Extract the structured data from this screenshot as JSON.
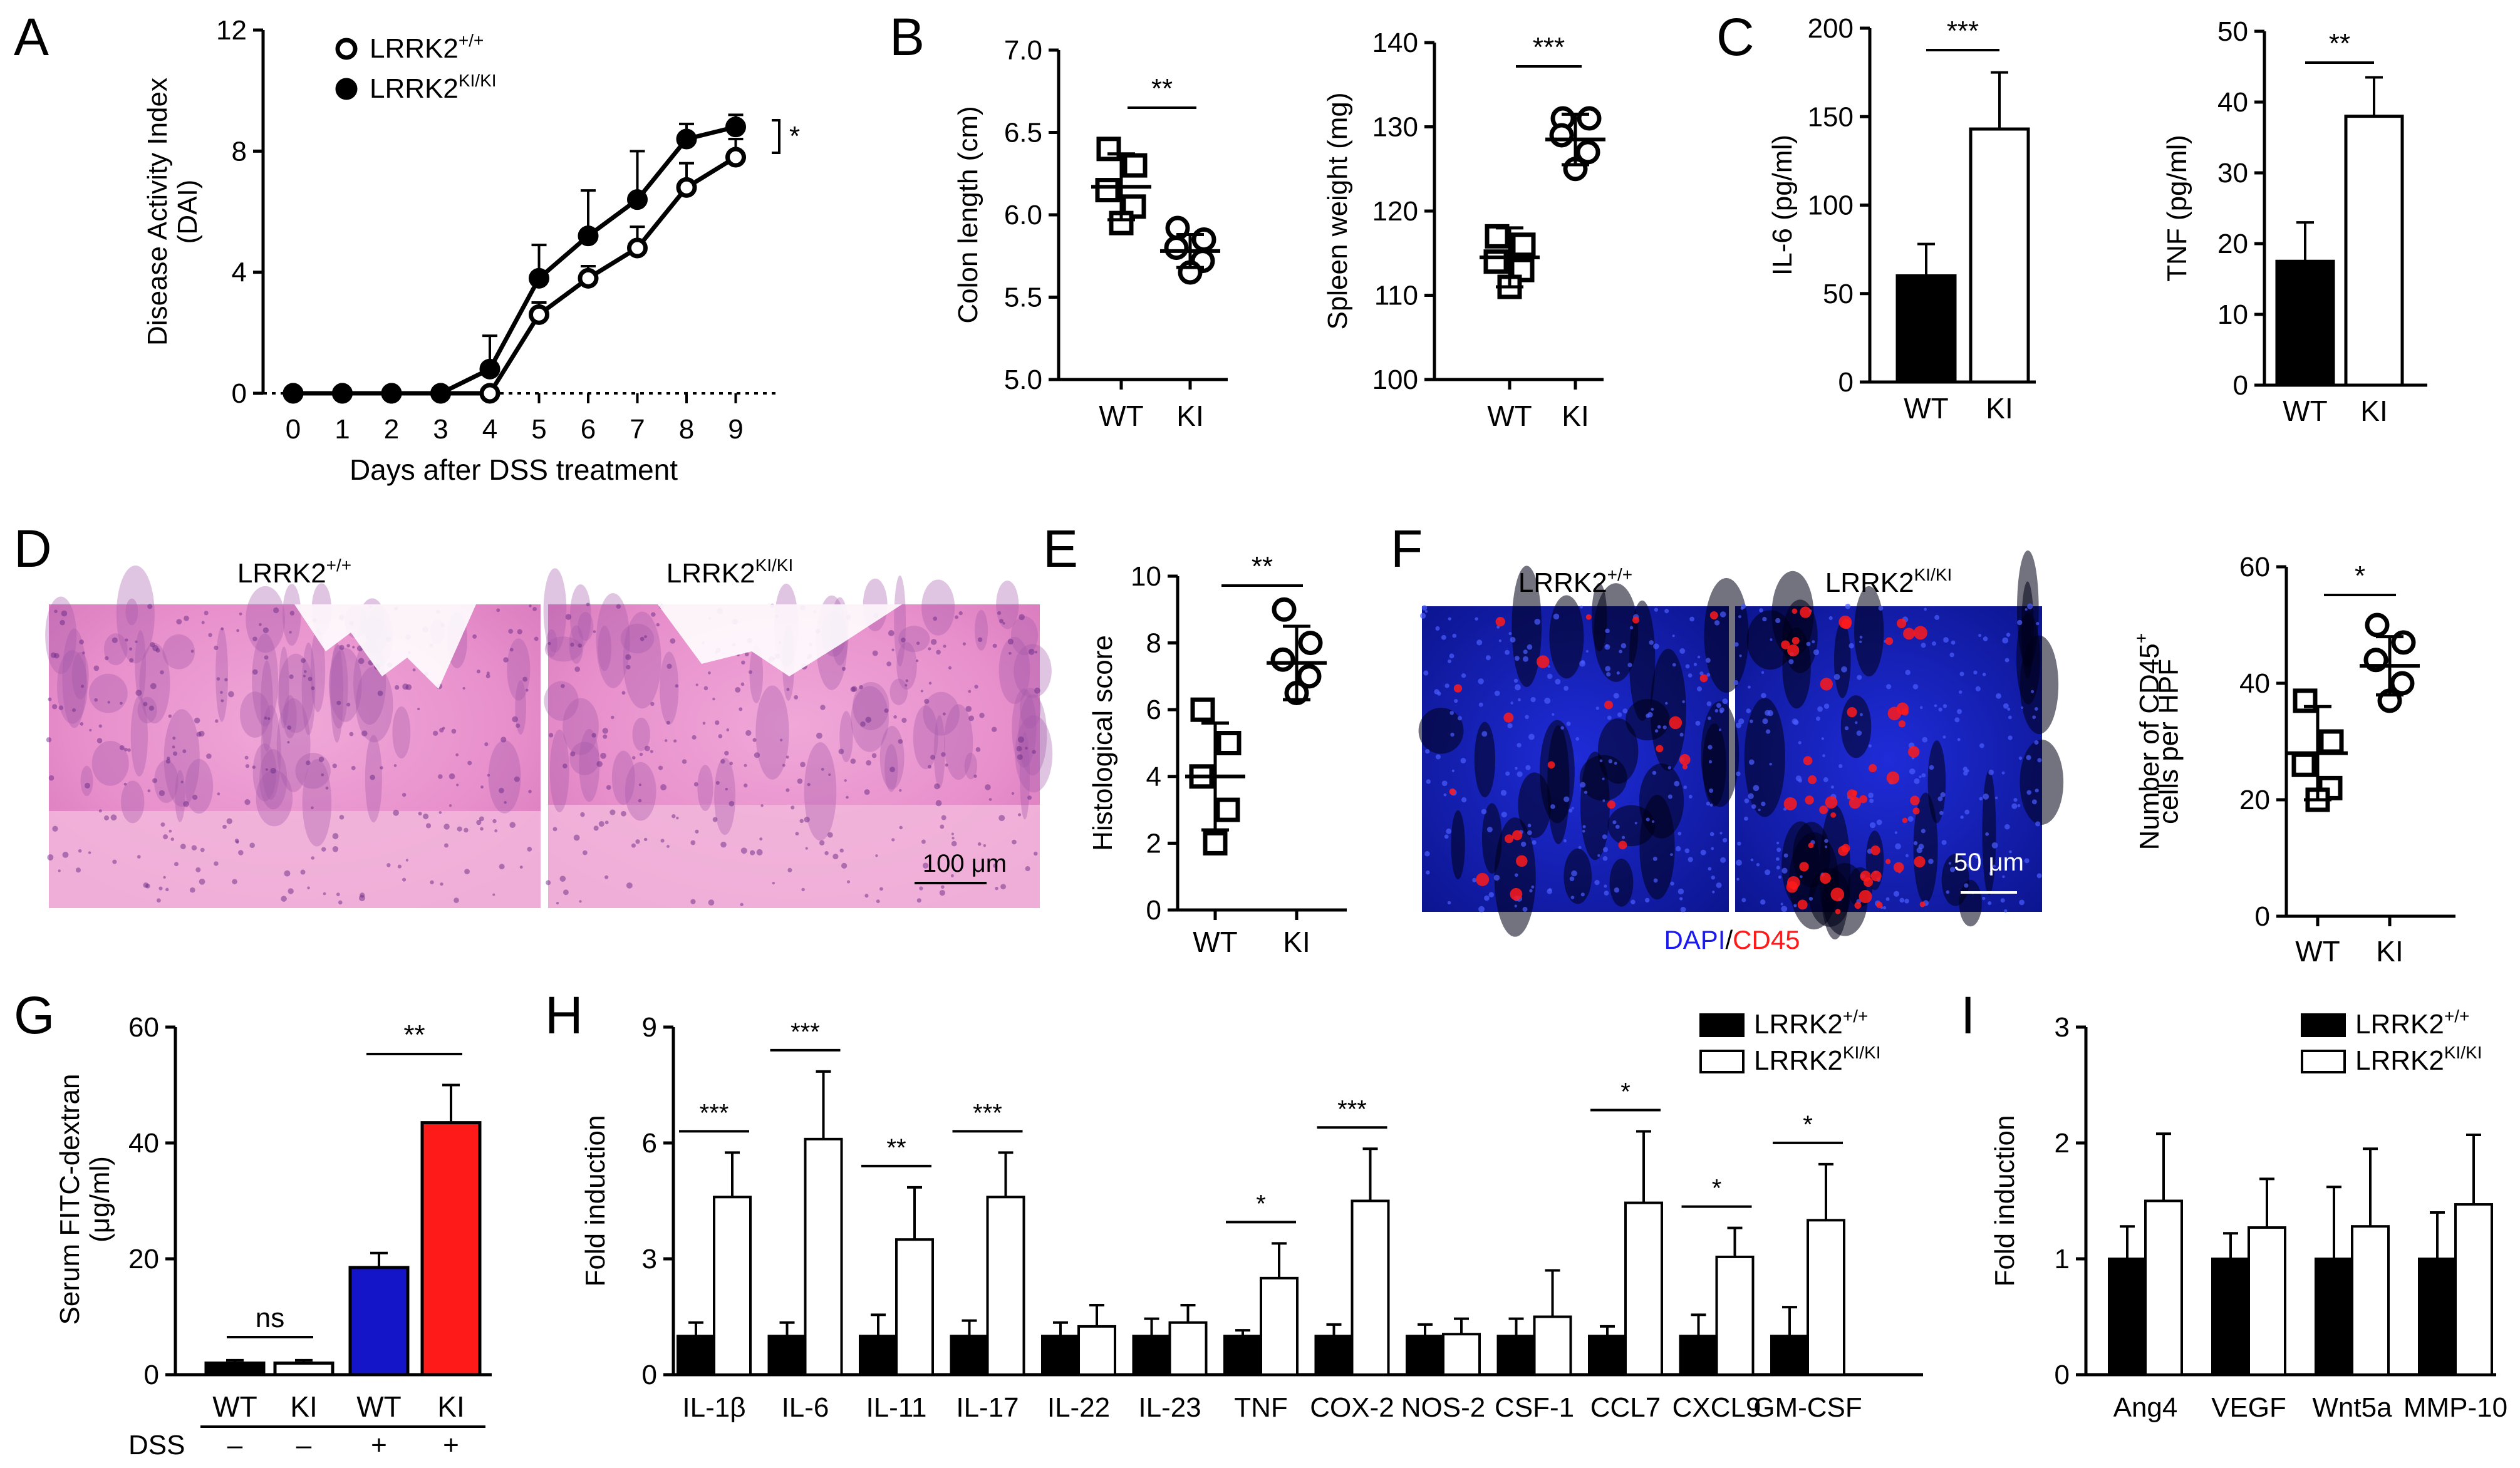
{
  "figure": {
    "panel_letters": [
      "A",
      "B",
      "C",
      "D",
      "E",
      "F",
      "G",
      "H",
      "I"
    ]
  },
  "chart_data": [
    {
      "id": "A",
      "type": "line",
      "title": "",
      "xlabel": "Days after DSS treatment",
      "ylabel": "Disease Activity Index (DAI)",
      "ylabel_lines": [
        "Disease Activity Index",
        "(DAI)"
      ],
      "x": [
        0,
        1,
        2,
        3,
        4,
        5,
        6,
        7,
        8,
        9
      ],
      "xticks": [
        "0",
        "1",
        "2",
        "3",
        "4",
        "5",
        "6",
        "7",
        "8",
        "9"
      ],
      "ylim": [
        0,
        12
      ],
      "yticks": [
        "0",
        "4",
        "8",
        "12"
      ],
      "series": [
        {
          "name": "LRRK2",
          "sup": "+/+",
          "marker": "open-circle",
          "values": [
            0,
            0,
            0,
            0,
            0,
            2.6,
            3.8,
            4.8,
            6.8,
            7.8
          ],
          "errors": [
            0,
            0,
            0,
            0,
            0,
            0.4,
            0.4,
            0.7,
            0.8,
            0.6
          ]
        },
        {
          "name": "LRRK2",
          "sup": "KI/KI",
          "marker": "filled-circle",
          "values": [
            0,
            0,
            0,
            0,
            0.8,
            3.8,
            5.2,
            6.4,
            8.4,
            8.8
          ],
          "errors": [
            0,
            0,
            0,
            0,
            1.1,
            1.1,
            1.5,
            1.6,
            0.5,
            0.4
          ]
        }
      ],
      "annotation": "*"
    },
    {
      "id": "B1",
      "type": "scatter",
      "ylabel": "Colon length (cm)",
      "categories": [
        "WT",
        "KI"
      ],
      "ylim": [
        5.0,
        7.0
      ],
      "yticks": [
        "5.0",
        "5.5",
        "6.0",
        "6.5",
        "7.0"
      ],
      "groups": [
        {
          "marker": "open-square",
          "points": [
            6.4,
            6.3,
            6.15,
            6.05,
            5.95
          ],
          "mean": 6.17,
          "sd": 0.2
        },
        {
          "marker": "open-circle",
          "points": [
            5.92,
            5.85,
            5.8,
            5.72,
            5.65
          ],
          "mean": 5.78,
          "sd": 0.1
        }
      ],
      "significance": "**"
    },
    {
      "id": "B2",
      "type": "scatter",
      "ylabel": "Spleen weight (mg)",
      "categories": [
        "WT",
        "KI"
      ],
      "ylim": [
        100,
        140
      ],
      "yticks": [
        "100",
        "110",
        "120",
        "130",
        "140"
      ],
      "groups": [
        {
          "marker": "open-square",
          "points": [
            117,
            116,
            114,
            113,
            111
          ],
          "mean": 114.5,
          "sd": 3.5
        },
        {
          "marker": "open-circle",
          "points": [
            131,
            131,
            129,
            127,
            125
          ],
          "mean": 128.5,
          "sd": 3
        }
      ],
      "significance": "***"
    },
    {
      "id": "C1",
      "type": "bar",
      "ylabel": "IL-6 (pg/ml)",
      "categories": [
        "WT",
        "KI"
      ],
      "values": [
        60,
        143
      ],
      "errors": [
        18,
        32
      ],
      "fills": [
        "filled",
        "open"
      ],
      "ylim": [
        0,
        200
      ],
      "yticks": [
        "0",
        "50",
        "100",
        "150",
        "200"
      ],
      "significance": "***"
    },
    {
      "id": "C2",
      "type": "bar",
      "ylabel": "TNF (pg/ml)",
      "categories": [
        "WT",
        "KI"
      ],
      "values": [
        17.5,
        38
      ],
      "errors": [
        5.5,
        5.5
      ],
      "fills": [
        "filled",
        "open"
      ],
      "ylim": [
        0,
        50
      ],
      "yticks": [
        "0",
        "10",
        "20",
        "30",
        "40",
        "50"
      ],
      "significance": "**"
    },
    {
      "id": "E",
      "type": "scatter",
      "ylabel": "Histological score",
      "categories": [
        "WT",
        "KI"
      ],
      "ylim": [
        0,
        10
      ],
      "yticks": [
        "0",
        "2",
        "4",
        "6",
        "8",
        "10"
      ],
      "groups": [
        {
          "marker": "open-square",
          "points": [
            6,
            5,
            4,
            3,
            2
          ],
          "mean": 4,
          "sd": 1.6
        },
        {
          "marker": "open-circle",
          "points": [
            9,
            8,
            7.5,
            7,
            6.5
          ],
          "mean": 7.4,
          "sd": 1.1
        }
      ],
      "significance": "**"
    },
    {
      "id": "F",
      "type": "scatter",
      "ylabel": "Number of CD45+ cells per HPF",
      "ylabel_lines": [
        "Number of CD45",
        "cells per HPF"
      ],
      "ylabel_sup": "+",
      "categories": [
        "WT",
        "KI"
      ],
      "ylim": [
        0,
        60
      ],
      "yticks": [
        "0",
        "20",
        "40",
        "60"
      ],
      "groups": [
        {
          "marker": "open-square",
          "points": [
            37,
            30,
            26,
            22,
            20
          ],
          "mean": 28,
          "sd": 8
        },
        {
          "marker": "open-circle",
          "points": [
            50,
            47,
            44,
            40,
            37
          ],
          "mean": 43,
          "sd": 5
        }
      ],
      "significance": "*"
    },
    {
      "id": "G",
      "type": "bar",
      "ylabel": "Serum FITC-dextran (μg/ml)",
      "ylabel_lines": [
        "Serum FITC-dextran",
        "(μg/ml)"
      ],
      "categories": [
        "WT",
        "KI",
        "WT",
        "KI"
      ],
      "dss_label": "DSS",
      "dss": [
        "–",
        "–",
        "+",
        "+"
      ],
      "values": [
        2,
        2,
        18.5,
        43.5
      ],
      "errors": [
        0.5,
        0.5,
        2.5,
        6.5
      ],
      "colors": [
        "#000000",
        "#ffffff",
        "#1414c8",
        "#ff1a1a"
      ],
      "ylim": [
        0,
        60
      ],
      "yticks": [
        "0",
        "20",
        "40",
        "60"
      ],
      "significance": [
        {
          "pair": [
            0,
            1
          ],
          "label": "ns"
        },
        {
          "pair": [
            2,
            3
          ],
          "label": "**"
        }
      ]
    },
    {
      "id": "H",
      "type": "bar",
      "ylabel": "Fold induction",
      "categories": [
        "IL-1β",
        "IL-6",
        "IL-11",
        "IL-17",
        "IL-22",
        "IL-23",
        "TNF",
        "COX-2",
        "NOS-2",
        "CSF-1",
        "CCL7",
        "CXCL9",
        "GM-CSF"
      ],
      "ylim": [
        0,
        9
      ],
      "yticks": [
        "0",
        "3",
        "6",
        "9"
      ],
      "series": [
        {
          "name": "LRRK2",
          "sup": "+/+",
          "fill": "filled",
          "values": [
            1,
            1,
            1,
            1,
            1,
            1,
            1,
            1,
            1,
            1,
            1,
            1,
            1
          ],
          "errors": [
            0.35,
            0.35,
            0.55,
            0.4,
            0.35,
            0.45,
            0.15,
            0.3,
            0.3,
            0.45,
            0.25,
            0.55,
            0.75
          ]
        },
        {
          "name": "LRRK2",
          "sup": "KI/KI",
          "fill": "open",
          "values": [
            4.6,
            6.1,
            3.5,
            4.6,
            1.25,
            1.35,
            2.5,
            4.5,
            1.05,
            1.5,
            4.45,
            3.05,
            4.0
          ],
          "errors": [
            1.15,
            1.75,
            1.35,
            1.15,
            0.55,
            0.45,
            0.9,
            1.35,
            0.4,
            1.2,
            1.85,
            0.75,
            1.45
          ]
        }
      ],
      "significance": [
        "***",
        "***",
        "**",
        "***",
        "",
        "",
        "*",
        "***",
        "",
        "",
        "*",
        "*",
        "*"
      ]
    },
    {
      "id": "I",
      "type": "bar",
      "ylabel": "Fold induction",
      "categories": [
        "Ang4",
        "VEGF",
        "Wnt5a",
        "MMP-10"
      ],
      "ylim": [
        0,
        3
      ],
      "yticks": [
        "0",
        "1",
        "2",
        "3"
      ],
      "series": [
        {
          "name": "LRRK2",
          "sup": "+/+",
          "fill": "filled",
          "values": [
            1,
            1,
            1,
            1
          ],
          "errors": [
            0.28,
            0.22,
            0.62,
            0.4
          ]
        },
        {
          "name": "LRRK2",
          "sup": "KI/KI",
          "fill": "open",
          "values": [
            1.5,
            1.27,
            1.28,
            1.47
          ],
          "errors": [
            0.58,
            0.42,
            0.67,
            0.6
          ]
        }
      ]
    }
  ],
  "micrographs": {
    "D": {
      "labels": [
        {
          "name": "LRRK2",
          "sup": "+/+"
        },
        {
          "name": "LRRK2",
          "sup": "KI/KI"
        }
      ],
      "scalebar": "100 μm"
    },
    "F": {
      "labels": [
        {
          "name": "LRRK2",
          "sup": "+/+"
        },
        {
          "name": "LRRK2",
          "sup": "KI/KI"
        }
      ],
      "scalebar": "50 μm",
      "stain_dapi": "DAPI",
      "stain_sep": "/",
      "stain_cd45": "CD45",
      "colors": {
        "dapi": "#1a1af0",
        "cd45": "#ff1a1a"
      }
    }
  }
}
